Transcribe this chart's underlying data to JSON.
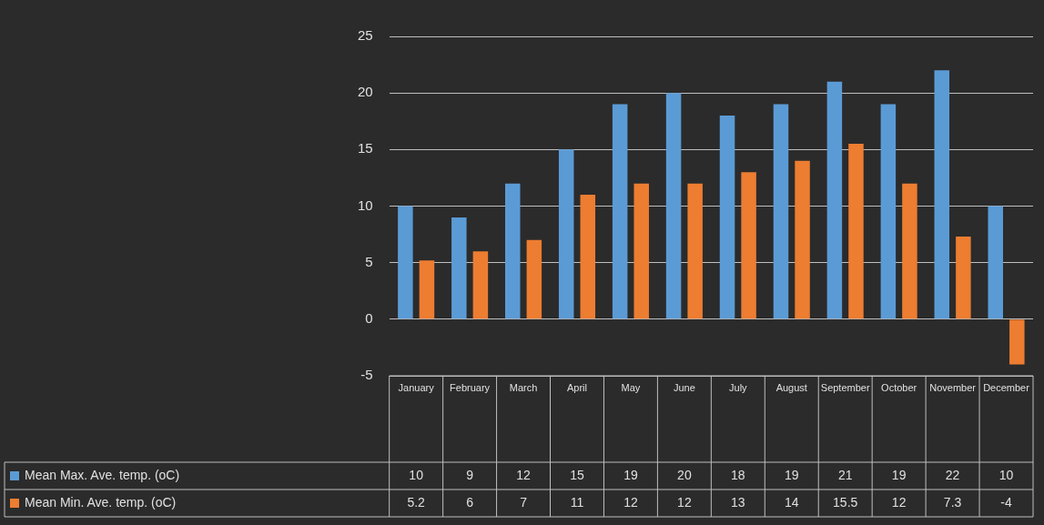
{
  "chart_data": {
    "type": "bar",
    "categories": [
      "January",
      "February",
      "March",
      "April",
      "May",
      "June",
      "July",
      "August",
      "September",
      "October",
      "November",
      "December"
    ],
    "series": [
      {
        "name": "Mean Max. Ave. temp. (oC)",
        "color": "#5b9bd5",
        "values": [
          10,
          9,
          12,
          15,
          19,
          20,
          18,
          19,
          21,
          19,
          22,
          10
        ]
      },
      {
        "name": "Mean Min. Ave. temp. (oC)",
        "color": "#ed7d31",
        "values": [
          5.2,
          6,
          7,
          11,
          12,
          12,
          13,
          14,
          15.5,
          12,
          7.3,
          -4
        ]
      }
    ],
    "ylim": [
      -5,
      25
    ],
    "yticks": [
      -5,
      0,
      5,
      10,
      15,
      20,
      25
    ],
    "grid": "y",
    "legend": "bottom",
    "data_labels": true
  }
}
